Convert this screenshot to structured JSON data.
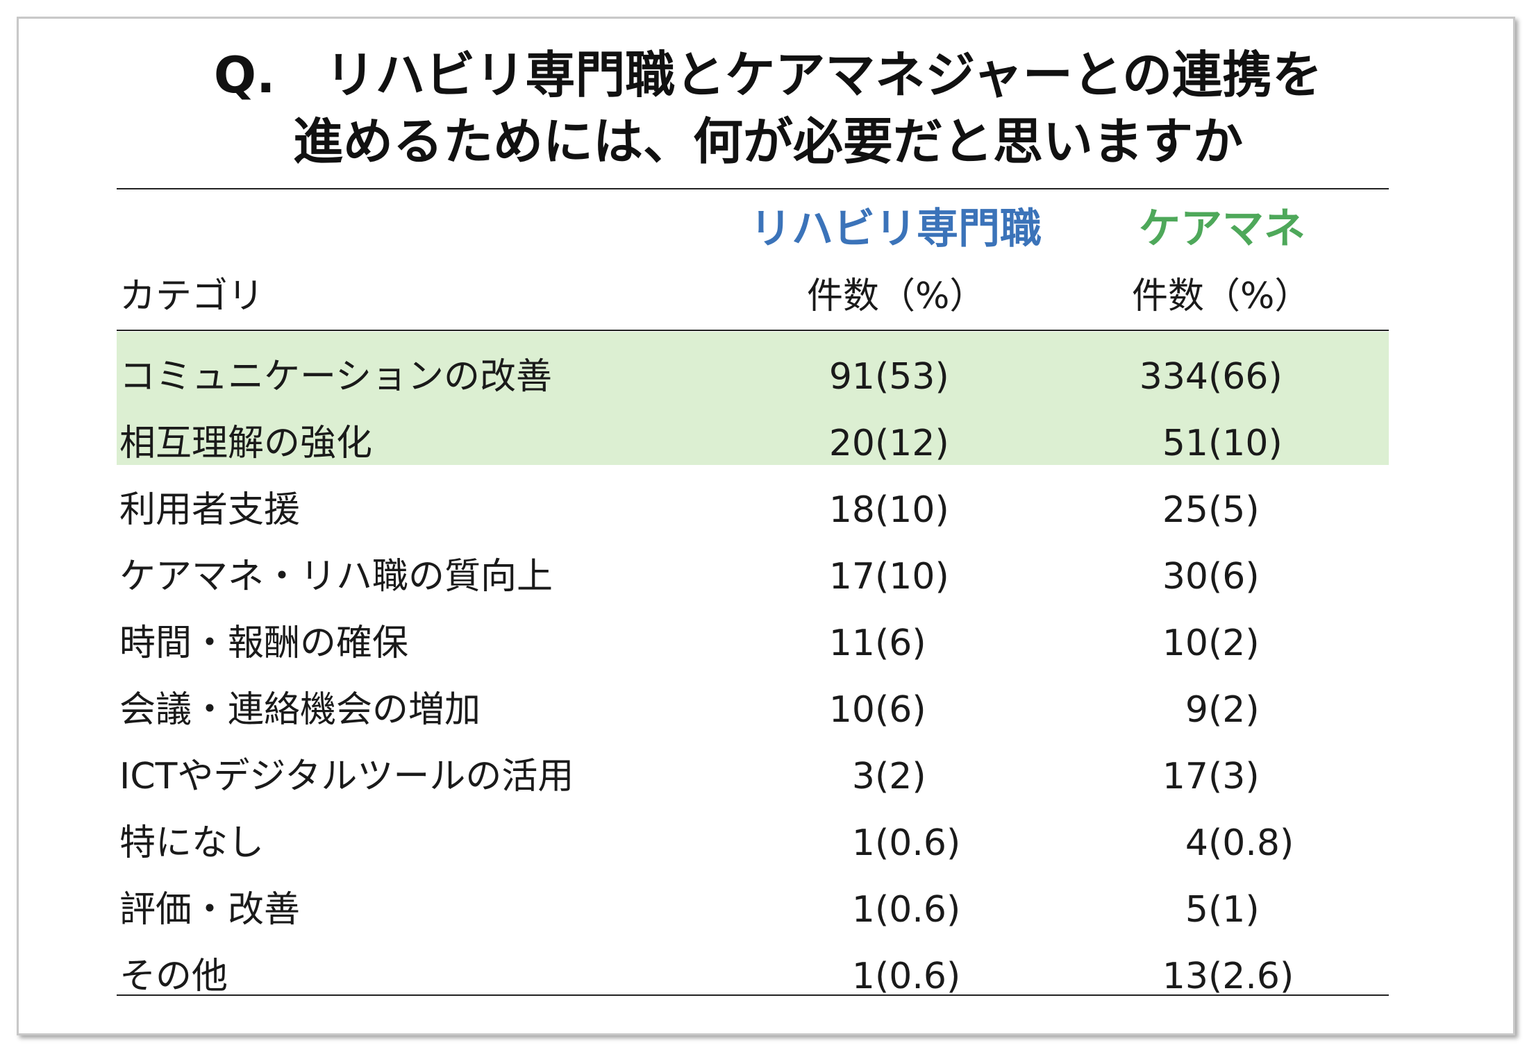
{
  "title": {
    "line1": "Q.　リハビリ専門職とケアマネジャーとの連携を",
    "line2": "進めるためには、何が必要だと思いますか"
  },
  "columns": {
    "category": "カテゴリ",
    "rehab": {
      "group": "リハビリ専門職",
      "sub": "件数（%）"
    },
    "care": {
      "group": "ケアマネ",
      "sub": "件数（%）"
    }
  },
  "colors": {
    "rehab_header": "#3b73b9",
    "care_header": "#4ea85a",
    "highlight_rows": "#dcefd2"
  },
  "rows": [
    {
      "category": "コミュニケーションの改善",
      "rehab_n": "91",
      "rehab_p": "(53)",
      "care_n": "334",
      "care_p": "(66)",
      "highlighted": true
    },
    {
      "category": "相互理解の強化",
      "rehab_n": "20",
      "rehab_p": "(12)",
      "care_n": "51",
      "care_p": "(10)",
      "highlighted": true
    },
    {
      "category": "利用者支援",
      "rehab_n": "18",
      "rehab_p": "(10)",
      "care_n": "25",
      "care_p": "(5)",
      "highlighted": false
    },
    {
      "category": "ケアマネ・リハ職の質向上",
      "rehab_n": "17",
      "rehab_p": "(10)",
      "care_n": "30",
      "care_p": "(6)",
      "highlighted": false
    },
    {
      "category": "時間・報酬の確保",
      "rehab_n": "11",
      "rehab_p": "(6)",
      "care_n": "10",
      "care_p": "(2)",
      "highlighted": false
    },
    {
      "category": "会議・連絡機会の増加",
      "rehab_n": "10",
      "rehab_p": "(6)",
      "care_n": "9",
      "care_p": "(2)",
      "highlighted": false
    },
    {
      "category": "ICTやデジタルツールの活用",
      "rehab_n": "3",
      "rehab_p": "(2)",
      "care_n": "17",
      "care_p": "(3)",
      "highlighted": false
    },
    {
      "category": "特になし",
      "rehab_n": "1",
      "rehab_p": "(0.6)",
      "care_n": "4",
      "care_p": "(0.8)",
      "highlighted": false
    },
    {
      "category": "評価・改善",
      "rehab_n": "1",
      "rehab_p": "(0.6)",
      "care_n": "5",
      "care_p": "(1)",
      "highlighted": false
    },
    {
      "category": "その他",
      "rehab_n": "1",
      "rehab_p": "(0.6)",
      "care_n": "13",
      "care_p": "(2.6)",
      "highlighted": false
    }
  ]
}
